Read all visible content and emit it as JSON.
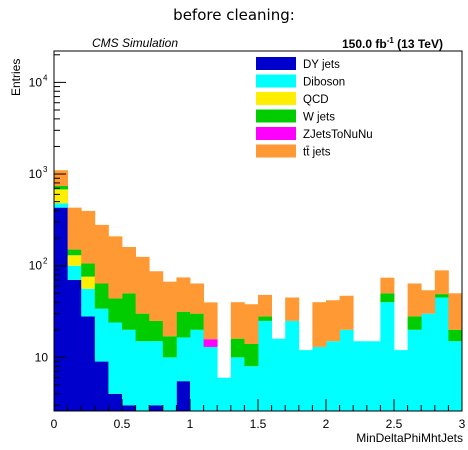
{
  "chart_data": {
    "type": "bar",
    "stacked": true,
    "title": "before cleaning:",
    "experiment_label": "CMS Simulation",
    "luminosity_label": {
      "value": "150.0 fb",
      "exp": "-1",
      "suffix": " (13 TeV)"
    },
    "xlabel": "MinDeltaPhiMhtJets",
    "ylabel": "Entries",
    "xlim": [
      0,
      3
    ],
    "ylim": [
      2.6,
      22000
    ],
    "yscale": "log",
    "x_ticks": [
      0,
      0.5,
      1,
      1.5,
      2,
      2.5,
      3
    ],
    "x_tick_labels": [
      "0",
      "0.5",
      "1",
      "1.5",
      "2",
      "2.5",
      "3"
    ],
    "y_ticks": [
      10,
      100,
      1000,
      10000
    ],
    "y_tick_labels": [
      "10",
      "10",
      "10",
      "10"
    ],
    "y_tick_exps": [
      "",
      "2",
      "3",
      "4"
    ],
    "legend_position": "top-right",
    "bin_width": 0.1,
    "x": [
      0.05,
      0.15,
      0.25,
      0.35,
      0.45,
      0.55,
      0.65,
      0.75,
      0.85,
      0.95,
      1.05,
      1.15,
      1.25,
      1.35,
      1.45,
      1.55,
      1.65,
      1.75,
      1.85,
      1.95,
      2.05,
      2.15,
      2.25,
      2.35,
      2.45,
      2.55,
      2.65,
      2.75,
      2.85,
      2.95
    ],
    "series": [
      {
        "name": "DY jets",
        "color": "#0000cc",
        "values": [
          430,
          70,
          28,
          9,
          4,
          3,
          0,
          3,
          0,
          5.5,
          0,
          0,
          0,
          0,
          0,
          0,
          0,
          0,
          0,
          0,
          0,
          0,
          0,
          0,
          0,
          0,
          0,
          0,
          0,
          0
        ]
      },
      {
        "name": "Diboson",
        "color": "#00ffff",
        "values": [
          50,
          30,
          28,
          25,
          20,
          17,
          15,
          12,
          10,
          11,
          20,
          13,
          6,
          10,
          8,
          25,
          16,
          25,
          12,
          13,
          15,
          20,
          15,
          15,
          40,
          12,
          20,
          30,
          45,
          15
        ]
      },
      {
        "name": "QCD",
        "color": "#ffee00",
        "values": [
          200,
          30,
          20,
          0,
          0,
          0,
          0,
          0,
          0,
          0,
          0,
          0,
          0,
          0,
          0,
          0,
          0,
          0,
          0,
          0,
          0,
          0,
          0,
          0,
          0,
          0,
          0,
          0,
          0,
          0
        ]
      },
      {
        "name": "W jets",
        "color": "#00cc00",
        "values": [
          60,
          20,
          30,
          30,
          20,
          30,
          15,
          10,
          7,
          15,
          10,
          0,
          0,
          6,
          6,
          3,
          0,
          0,
          0,
          0,
          0,
          0,
          0,
          0,
          10,
          0,
          8,
          0,
          4,
          5
        ]
      },
      {
        "name": "ZJetsToNuNu",
        "color": "#ff00ff",
        "values": [
          0,
          0,
          0,
          0,
          0,
          0,
          0,
          0,
          0,
          0,
          0,
          2.8,
          0,
          0,
          0,
          0,
          0,
          0,
          0,
          0,
          0,
          0,
          0,
          0,
          0,
          0,
          0,
          0,
          0,
          0
        ]
      },
      {
        "name": "tt̄ jets",
        "color": "#ff9933",
        "values": [
          360,
          280,
          290,
          215,
          165,
          110,
          95,
          62,
          50,
          43,
          34,
          24,
          0,
          24,
          24,
          20,
          0,
          20,
          0,
          27,
          27,
          27,
          0,
          0,
          24,
          0,
          36,
          24,
          40,
          30
        ]
      }
    ]
  }
}
